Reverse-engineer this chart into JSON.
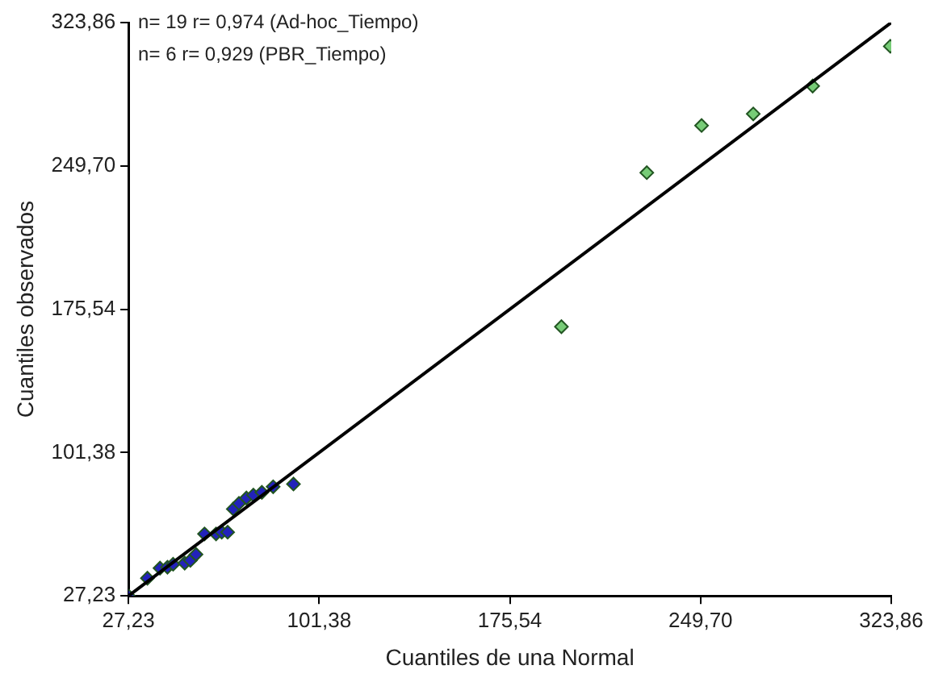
{
  "chart_data": {
    "type": "scatter",
    "xlabel": "Cuantiles de una Normal",
    "ylabel": "Cuantiles observados",
    "annotations": [
      "n= 19 r= 0,974 (Ad-hoc_Tiempo)",
      "n= 6 r= 0,929 (PBR_Tiempo)"
    ],
    "xlim": [
      27.23,
      323.86
    ],
    "ylim": [
      27.23,
      323.86
    ],
    "xticks": [
      {
        "value": 27.23,
        "label": "27,23"
      },
      {
        "value": 101.38,
        "label": "101,38"
      },
      {
        "value": 175.54,
        "label": "175,54"
      },
      {
        "value": 249.7,
        "label": "249,70"
      },
      {
        "value": 323.86,
        "label": "323,86"
      }
    ],
    "yticks": [
      {
        "value": 27.23,
        "label": "27,23"
      },
      {
        "value": 101.38,
        "label": "101,38"
      },
      {
        "value": 175.54,
        "label": "175,54"
      },
      {
        "value": 249.7,
        "label": "249,70"
      },
      {
        "value": 323.86,
        "label": "323,86"
      }
    ],
    "grid": false,
    "legend": false,
    "marker": "diamond",
    "series": [
      {
        "type": "line",
        "color": "#000000",
        "x": [
          27.23,
          323.86
        ],
        "values": [
          27.23,
          323.86
        ],
        "marker": "none"
      },
      {
        "color": "#2222bb",
        "x": [
          27.23,
          34.6,
          39.5,
          42.4,
          44.6,
          49.1,
          51.3,
          53.5,
          56.8,
          61.3,
          63.5,
          65.8,
          68.0,
          70.2,
          73.1,
          75.8,
          79.1,
          83.5,
          91.4
        ],
        "values": [
          27.23,
          36.4,
          41.6,
          42.1,
          43.6,
          44.2,
          45.6,
          48.7,
          59.3,
          59.3,
          60.2,
          60.2,
          72.2,
          75.1,
          77.9,
          79.4,
          80.8,
          83.7,
          85.1
        ]
      },
      {
        "color": "#77cc77",
        "x": [
          195.6,
          228.8,
          250.1,
          270.2,
          293.3,
          323.5
        ],
        "values": [
          166.5,
          246.2,
          270.6,
          276.6,
          291,
          311.6
        ]
      }
    ]
  }
}
